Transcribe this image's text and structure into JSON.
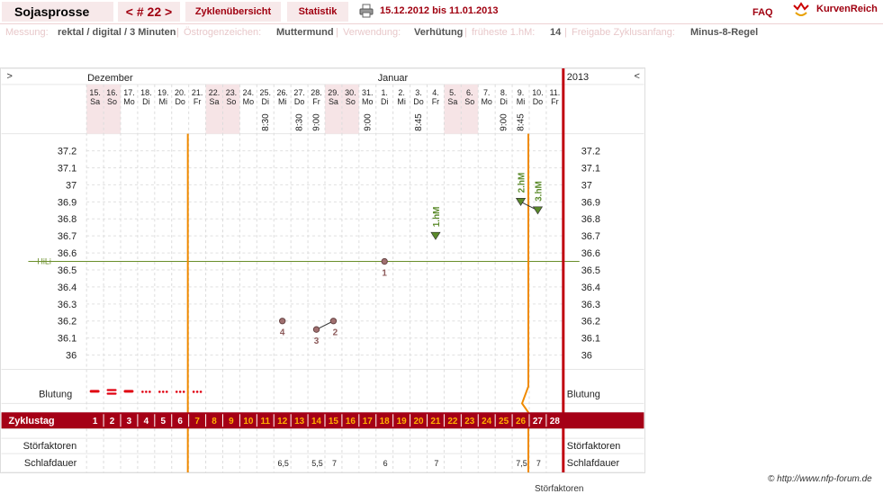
{
  "topbar": {
    "brand": "Sojasprosse",
    "cycle": "< # 22 >",
    "overview": "Zyklenübersicht",
    "stats": "Statistik",
    "range": "15.12.2012 bis 11.01.2013",
    "faq": "FAQ",
    "brand_right": "KurvenReich"
  },
  "info": {
    "messung_lbl": "Messung:",
    "messung_val": "rektal / digital / 3 Minuten",
    "oestro_lbl": "Östrogenzeichen:",
    "oestro_val": "Muttermund",
    "verw_lbl": "Verwendung:",
    "verw_val": "Verhütung",
    "hm_lbl": "früheste 1.hM:",
    "hm_val": "14",
    "frei_lbl": "Freigabe Zyklusanfang:",
    "frei_val": "Minus-8-Regel"
  },
  "chart_data": {
    "type": "scatter",
    "months": [
      "Dezember",
      "Januar"
    ],
    "year": "2013",
    "nav_left": ">",
    "nav_right": "<",
    "days": [
      {
        "d": "15.",
        "w": "Sa",
        "we": true
      },
      {
        "d": "16.",
        "w": "So",
        "we": true
      },
      {
        "d": "17.",
        "w": "Mo"
      },
      {
        "d": "18.",
        "w": "Di"
      },
      {
        "d": "19.",
        "w": "Mi"
      },
      {
        "d": "20.",
        "w": "Do"
      },
      {
        "d": "21.",
        "w": "Fr"
      },
      {
        "d": "22.",
        "w": "Sa",
        "we": true
      },
      {
        "d": "23.",
        "w": "So",
        "we": true
      },
      {
        "d": "24.",
        "w": "Mo"
      },
      {
        "d": "25.",
        "w": "Di"
      },
      {
        "d": "26.",
        "w": "Mi"
      },
      {
        "d": "27.",
        "w": "Do"
      },
      {
        "d": "28.",
        "w": "Fr"
      },
      {
        "d": "29.",
        "w": "Sa",
        "we": true
      },
      {
        "d": "30.",
        "w": "So",
        "we": true
      },
      {
        "d": "31.",
        "w": "Mo"
      },
      {
        "d": "1.",
        "w": "Di"
      },
      {
        "d": "2.",
        "w": "Mi"
      },
      {
        "d": "3.",
        "w": "Do"
      },
      {
        "d": "4.",
        "w": "Fr"
      },
      {
        "d": "5.",
        "w": "Sa",
        "we": true
      },
      {
        "d": "6.",
        "w": "So",
        "we": true
      },
      {
        "d": "7.",
        "w": "Mo"
      },
      {
        "d": "8.",
        "w": "Di"
      },
      {
        "d": "9.",
        "w": "Mi"
      },
      {
        "d": "10.",
        "w": "Do"
      },
      {
        "d": "11.",
        "w": "Fr"
      }
    ],
    "times": {
      "10": "8:30",
      "12": "8:30",
      "13": "9:00",
      "16": "9:00",
      "19": "8:45",
      "24": "9:00",
      "25": "8:45"
    },
    "yticks": [
      "37.2",
      "37.1",
      "37",
      "36.9",
      "36.8",
      "36.7",
      "36.6",
      "36.5",
      "36.4",
      "36.3",
      "36.2",
      "36.1",
      "36"
    ],
    "ymin": 36.0,
    "ymax": 37.2,
    "hili_label": "HiLi",
    "hili": 36.55,
    "temps": [
      {
        "day": 11,
        "t": 36.2,
        "label": "4"
      },
      {
        "day": 13,
        "t": 36.15,
        "label": "3"
      },
      {
        "day": 14,
        "t": 36.2,
        "label": "2"
      },
      {
        "day": 17,
        "t": 36.55,
        "label": "1"
      }
    ],
    "hm": [
      {
        "day": 20,
        "t": 36.7,
        "label": "1.hM"
      },
      {
        "day": 25,
        "t": 36.9,
        "label": "2.hM"
      },
      {
        "day": 26,
        "t": 36.85,
        "label": "3.hM"
      }
    ],
    "bleeding_label": "Blutung",
    "bleeding": [
      "heavy",
      "heavy2",
      "heavy",
      "light",
      "light",
      "light",
      "light"
    ],
    "cycle_label": "Zyklustag",
    "cycle_days": [
      "1",
      "2",
      "3",
      "4",
      "5",
      "6",
      "7",
      "8",
      "9",
      "10",
      "11",
      "12",
      "13",
      "14",
      "15",
      "16",
      "17",
      "18",
      "19",
      "20",
      "21",
      "22",
      "23",
      "24",
      "25",
      "26",
      "27",
      "28"
    ],
    "stoer_label": "Störfaktoren",
    "sleep_label": "Schlafdauer",
    "sleep": {
      "11": "6,5",
      "13": "5,5",
      "14": "7",
      "17": "6",
      "20": "7",
      "25": "7,5",
      "26": "7"
    }
  },
  "footer": {
    "copyright": "© http://www.nfp-forum.de",
    "clipped": "Störfaktoren"
  }
}
